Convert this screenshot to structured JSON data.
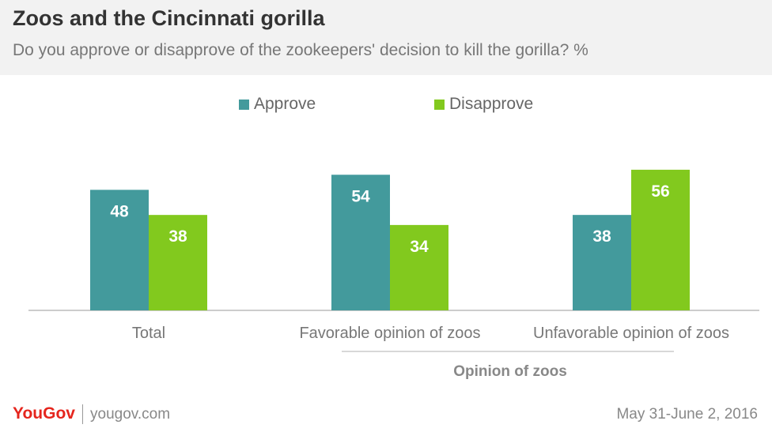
{
  "title": "Zoos and the Cincinnati gorilla",
  "subtitle": "Do you approve or disapprove of the zookeepers' decision to kill the gorilla? %",
  "colors": {
    "approve": "#439a9c",
    "disapprove": "#82c91e"
  },
  "chart_data": {
    "type": "bar",
    "title": "Zoos and the Cincinnati gorilla",
    "subtitle": "Do you approve or disapprove of the zookeepers' decision to kill the gorilla? %",
    "categories": [
      "Total",
      "Favorable opinion of zoos",
      "Unfavorable opinion of zoos"
    ],
    "group_label": "Opinion of zoos",
    "series": [
      {
        "name": "Approve",
        "values": [
          48,
          54,
          38
        ]
      },
      {
        "name": "Disapprove",
        "values": [
          38,
          34,
          56
        ]
      }
    ],
    "ylim": [
      0,
      60
    ],
    "grid": false,
    "legend_position": "top-center"
  },
  "footer": {
    "brand": "YouGov",
    "site": "yougov.com",
    "date": "May 31-June 2, 2016"
  }
}
